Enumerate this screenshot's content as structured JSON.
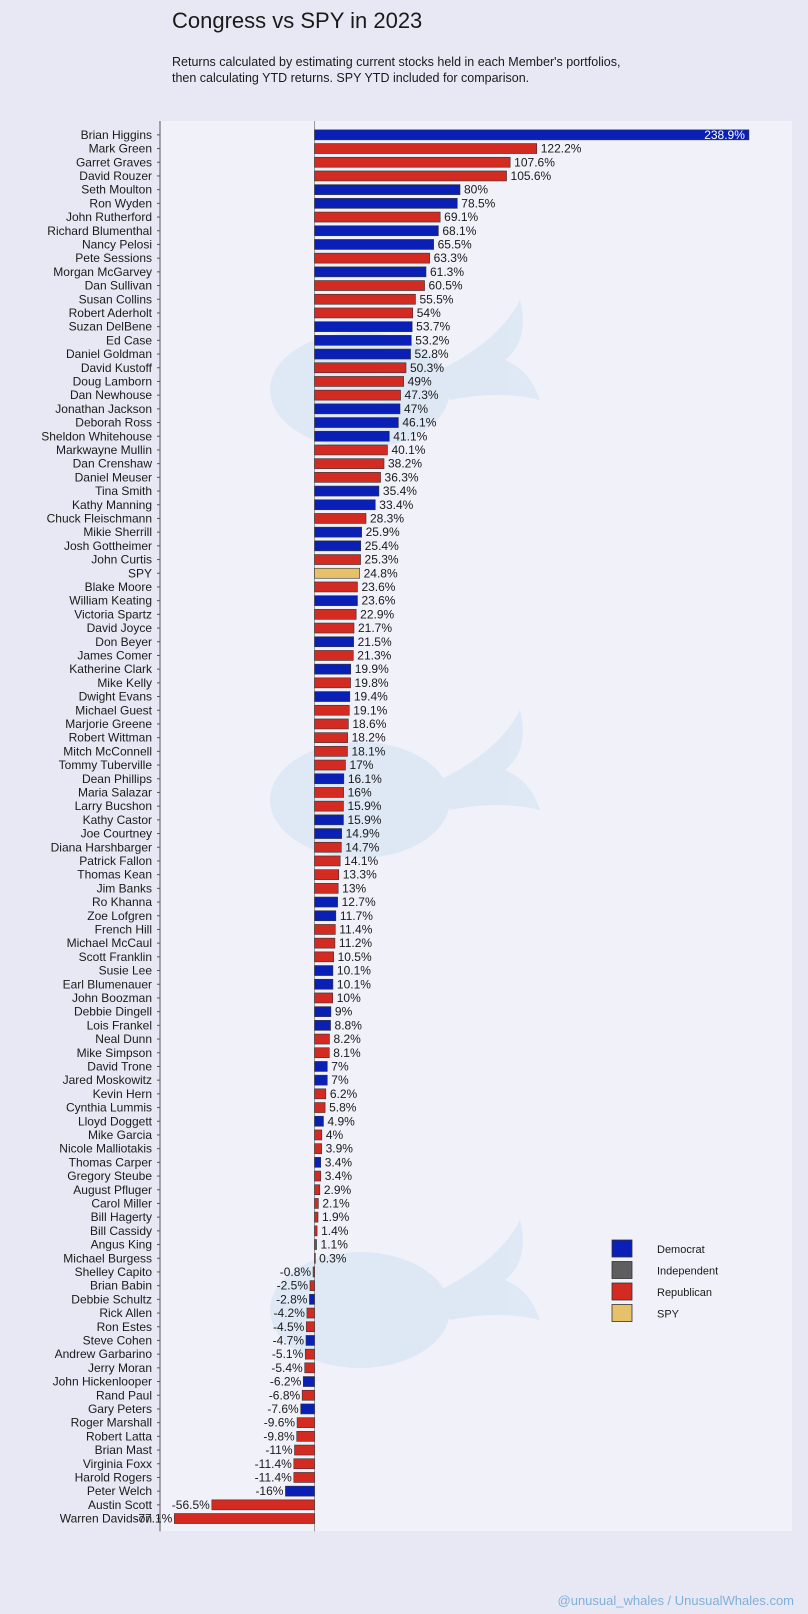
{
  "title": "Congress vs SPY in 2023",
  "subtitle": "Returns calculated by estimating current stocks held in each Member's portfolios, then calculating YTD returns. SPY YTD included for comparison.",
  "footer": "@unusual_whales / UnusualWhales.com",
  "colors": {
    "Democrat": "#0a1fb5",
    "Independent": "#5e5e5e",
    "Republican": "#d32a22",
    "SPY": "#e7c06a"
  },
  "chart_data": {
    "type": "bar",
    "orientation": "horizontal",
    "legend": {
      "placement": "bottom-right",
      "entries": [
        "Democrat",
        "Independent",
        "Republican",
        "SPY"
      ]
    },
    "categories": [
      "Brian Higgins",
      "Mark Green",
      "Garret Graves",
      "David Rouzer",
      "Seth Moulton",
      "Ron Wyden",
      "John Rutherford",
      "Richard Blumenthal",
      "Nancy Pelosi",
      "Pete Sessions",
      "Morgan McGarvey",
      "Dan Sullivan",
      "Susan Collins",
      "Robert Aderholt",
      "Suzan DelBene",
      "Ed Case",
      "Daniel Goldman",
      "David Kustoff",
      "Doug Lamborn",
      "Dan Newhouse",
      "Jonathan Jackson",
      "Deborah Ross",
      "Sheldon Whitehouse",
      "Markwayne Mullin",
      "Dan Crenshaw",
      "Daniel Meuser",
      "Tina Smith",
      "Kathy Manning",
      "Chuck Fleischmann",
      "Mikie Sherrill",
      "Josh Gottheimer",
      "John Curtis",
      "SPY",
      "Blake Moore",
      "William Keating",
      "Victoria Spartz",
      "David Joyce",
      "Don Beyer",
      "James Comer",
      "Katherine Clark",
      "Mike Kelly",
      "Dwight Evans",
      "Michael Guest",
      "Marjorie Greene",
      "Robert Wittman",
      "Mitch McConnell",
      "Tommy Tuberville",
      "Dean Phillips",
      "Maria Salazar",
      "Larry Bucshon",
      "Kathy Castor",
      "Joe Courtney",
      "Diana Harshbarger",
      "Patrick Fallon",
      "Thomas Kean",
      "Jim Banks",
      "Ro Khanna",
      "Zoe Lofgren",
      "French Hill",
      "Michael McCaul",
      "Scott Franklin",
      "Susie Lee",
      "Earl Blumenauer",
      "John Boozman",
      "Debbie Dingell",
      "Lois Frankel",
      "Neal Dunn",
      "Mike Simpson",
      "David Trone",
      "Jared Moskowitz",
      "Kevin Hern",
      "Cynthia Lummis",
      "Lloyd Doggett",
      "Mike Garcia",
      "Nicole Malliotakis",
      "Thomas Carper",
      "Gregory Steube",
      "August Pfluger",
      "Carol Miller",
      "Bill Hagerty",
      "Bill Cassidy",
      "Angus King",
      "Michael Burgess",
      "Shelley Capito",
      "Brian Babin",
      "Debbie Schultz",
      "Rick Allen",
      "Ron Estes",
      "Steve Cohen",
      "Andrew Garbarino",
      "Jerry Moran",
      "John Hickenlooper",
      "Rand Paul",
      "Gary Peters",
      "Roger Marshall",
      "Robert Latta",
      "Brian Mast",
      "Virginia Foxx",
      "Harold Rogers",
      "Peter Welch",
      "Austin Scott",
      "Warren Davidson"
    ],
    "values": [
      238.9,
      122.2,
      107.6,
      105.6,
      80,
      78.5,
      69.1,
      68.1,
      65.5,
      63.3,
      61.3,
      60.5,
      55.5,
      54,
      53.7,
      53.2,
      52.8,
      50.3,
      49,
      47.3,
      47,
      46.1,
      41.1,
      40.1,
      38.2,
      36.3,
      35.4,
      33.4,
      28.3,
      25.9,
      25.4,
      25.3,
      24.8,
      23.6,
      23.6,
      22.9,
      21.7,
      21.5,
      21.3,
      19.9,
      19.8,
      19.4,
      19.1,
      18.6,
      18.2,
      18.1,
      17,
      16.1,
      16,
      15.9,
      15.9,
      14.9,
      14.7,
      14.1,
      13.3,
      13,
      12.7,
      11.7,
      11.4,
      11.2,
      10.5,
      10.1,
      10.1,
      10,
      9,
      8.8,
      8.2,
      8.1,
      7,
      7,
      6.2,
      5.8,
      4.9,
      4,
      3.9,
      3.4,
      3.4,
      2.9,
      2.1,
      1.9,
      1.4,
      1.1,
      0.3,
      -0.8,
      -2.5,
      -2.8,
      -4.2,
      -4.5,
      -4.7,
      -5.1,
      -5.4,
      -6.2,
      -6.8,
      -7.6,
      -9.6,
      -9.8,
      -11,
      -11.4,
      -11.4,
      -16,
      -56.5,
      -77.1
    ],
    "labels": [
      "238.9%",
      "122.2%",
      "107.6%",
      "105.6%",
      "80%",
      "78.5%",
      "69.1%",
      "68.1%",
      "65.5%",
      "63.3%",
      "61.3%",
      "60.5%",
      "55.5%",
      "54%",
      "53.7%",
      "53.2%",
      "52.8%",
      "50.3%",
      "49%",
      "47.3%",
      "47%",
      "46.1%",
      "41.1%",
      "40.1%",
      "38.2%",
      "36.3%",
      "35.4%",
      "33.4%",
      "28.3%",
      "25.9%",
      "25.4%",
      "25.3%",
      "24.8%",
      "23.6%",
      "23.6%",
      "22.9%",
      "21.7%",
      "21.5%",
      "21.3%",
      "19.9%",
      "19.8%",
      "19.4%",
      "19.1%",
      "18.6%",
      "18.2%",
      "18.1%",
      "17%",
      "16.1%",
      "16%",
      "15.9%",
      "15.9%",
      "14.9%",
      "14.7%",
      "14.1%",
      "13.3%",
      "13%",
      "12.7%",
      "11.7%",
      "11.4%",
      "11.2%",
      "10.5%",
      "10.1%",
      "10.1%",
      "10%",
      "9%",
      "8.8%",
      "8.2%",
      "8.1%",
      "7%",
      "7%",
      "6.2%",
      "5.8%",
      "4.9%",
      "4%",
      "3.9%",
      "3.4%",
      "3.4%",
      "2.9%",
      "2.1%",
      "1.9%",
      "1.4%",
      "1.1%",
      "0.3%",
      "-0.8%",
      "-2.5%",
      "-2.8%",
      "-4.2%",
      "-4.5%",
      "-4.7%",
      "-5.1%",
      "-5.4%",
      "-6.2%",
      "-6.8%",
      "-7.6%",
      "-9.6%",
      "-9.8%",
      "-11%",
      "-11.4%",
      "-11.4%",
      "-16%",
      "-56.5%",
      "-77.1%"
    ],
    "party": [
      "D",
      "R",
      "R",
      "R",
      "D",
      "D",
      "R",
      "D",
      "D",
      "R",
      "D",
      "R",
      "R",
      "R",
      "D",
      "D",
      "D",
      "R",
      "R",
      "R",
      "D",
      "D",
      "D",
      "R",
      "R",
      "R",
      "D",
      "D",
      "R",
      "D",
      "D",
      "R",
      "SPY",
      "R",
      "D",
      "R",
      "R",
      "D",
      "R",
      "D",
      "R",
      "D",
      "R",
      "R",
      "R",
      "R",
      "R",
      "D",
      "R",
      "R",
      "D",
      "D",
      "R",
      "R",
      "R",
      "R",
      "D",
      "D",
      "R",
      "R",
      "R",
      "D",
      "D",
      "R",
      "D",
      "D",
      "R",
      "R",
      "D",
      "D",
      "R",
      "R",
      "D",
      "R",
      "R",
      "D",
      "R",
      "R",
      "R",
      "R",
      "R",
      "I",
      "R",
      "R",
      "R",
      "D",
      "R",
      "R",
      "D",
      "R",
      "R",
      "D",
      "R",
      "D",
      "R",
      "R",
      "R",
      "R",
      "R",
      "D",
      "R",
      "R"
    ],
    "xlim": [
      -85,
      245
    ]
  }
}
